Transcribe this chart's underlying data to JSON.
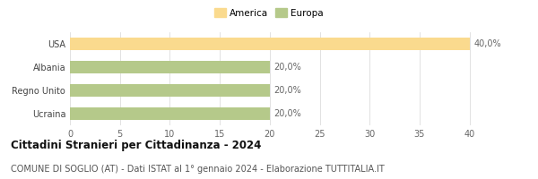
{
  "categories": [
    "USA",
    "Albania",
    "Regno Unito",
    "Ucraina"
  ],
  "values": [
    40.0,
    20.0,
    20.0,
    20.0
  ],
  "colors": [
    "#FADA8E",
    "#B5C98A",
    "#B5C98A",
    "#B5C98A"
  ],
  "legend": [
    {
      "label": "America",
      "color": "#FADA8E"
    },
    {
      "label": "Europa",
      "color": "#B5C98A"
    }
  ],
  "xlim": [
    0,
    42
  ],
  "xticks": [
    0,
    5,
    10,
    15,
    20,
    25,
    30,
    35,
    40
  ],
  "bar_labels": [
    "40,0%",
    "20,0%",
    "20,0%",
    "20,0%"
  ],
  "title": "Cittadini Stranieri per Cittadinanza - 2024",
  "subtitle": "COMUNE DI SOGLIO (AT) - Dati ISTAT al 1° gennaio 2024 - Elaborazione TUTTITALIA.IT",
  "title_fontsize": 8.5,
  "subtitle_fontsize": 7,
  "label_fontsize": 7,
  "tick_fontsize": 7,
  "legend_fontsize": 7.5,
  "bar_height": 0.55,
  "background_color": "#ffffff"
}
